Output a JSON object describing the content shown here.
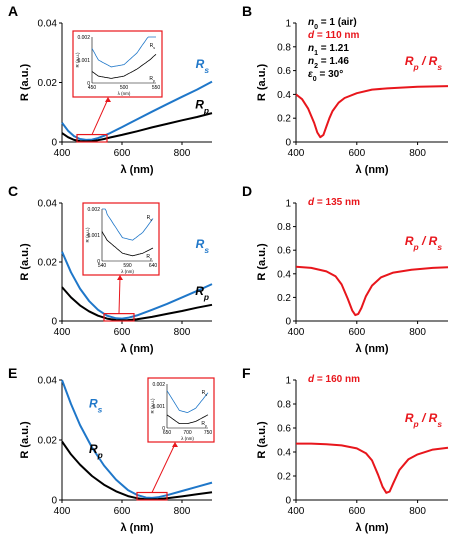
{
  "colors": {
    "rs": "#1f77c9",
    "rp": "#000000",
    "ratio": "#e8161c",
    "annotation": "#e8161c"
  },
  "chart_data": [
    {
      "panel": "A",
      "type": "line",
      "xlabel": "λ (nm)",
      "ylabel": "R (a.u.)",
      "xlim": [
        400,
        900
      ],
      "ylim": [
        0,
        0.04
      ],
      "xticks": [
        400,
        600,
        800
      ],
      "yticks": [
        0,
        0.02,
        0.04
      ],
      "xtick_labels": [
        "400",
        "600",
        "800"
      ],
      "ytick_labels": [
        "0",
        "0.02",
        "0.04"
      ],
      "series": [
        {
          "name": "R_s",
          "label_main": "R",
          "label_sub": "s",
          "color": "#1f77c9",
          "x": [
            400,
            420,
            440,
            460,
            480,
            500,
            520,
            540,
            560,
            600,
            650,
            700,
            750,
            800,
            850,
            900
          ],
          "y": [
            0.0065,
            0.0038,
            0.002,
            0.001,
            0.0007,
            0.0008,
            0.0013,
            0.0021,
            0.003,
            0.005,
            0.0076,
            0.0102,
            0.0127,
            0.0152,
            0.0176,
            0.0203
          ]
        },
        {
          "name": "R_p",
          "label_main": "R",
          "label_sub": "p",
          "color": "#000000",
          "x": [
            400,
            420,
            440,
            460,
            480,
            500,
            520,
            540,
            560,
            600,
            650,
            700,
            750,
            800,
            850,
            900
          ],
          "y": [
            0.003,
            0.0016,
            0.0007,
            0.0003,
            0.0002,
            0.0003,
            0.0006,
            0.001,
            0.0015,
            0.0024,
            0.0036,
            0.0049,
            0.0061,
            0.0073,
            0.0084,
            0.0097
          ]
        }
      ],
      "inset": {
        "xlim": [
          450,
          550
        ],
        "ylim": [
          0,
          0.002
        ],
        "xticks": [
          450,
          500,
          550
        ],
        "yticks": [
          0,
          0.001,
          0.002
        ],
        "xtick_labels": [
          "450",
          "500",
          "550"
        ],
        "ytick_labels": [
          "0",
          "0.001",
          "0.002"
        ],
        "xlabel": "λ (nm)",
        "ylabel": "R (a.u.)",
        "zoom_box": {
          "x": [
            450,
            550
          ],
          "y": [
            0,
            0.0025
          ]
        }
      }
    },
    {
      "panel": "B",
      "type": "line",
      "xlabel": "λ (nm)",
      "ylabel": "R (a.u.)",
      "xlim": [
        400,
        900
      ],
      "ylim": [
        0,
        1
      ],
      "xticks": [
        400,
        600,
        800
      ],
      "yticks": [
        0,
        0.2,
        0.4,
        0.6,
        0.8,
        1
      ],
      "xtick_labels": [
        "400",
        "600",
        "800"
      ],
      "ytick_labels": [
        "0",
        "0.2",
        "0.4",
        "0.6",
        "0.8",
        "1"
      ],
      "series": [
        {
          "name": "R_p / R_s",
          "color": "#e8161c",
          "x": [
            400,
            420,
            440,
            460,
            470,
            480,
            490,
            500,
            510,
            520,
            540,
            560,
            600,
            650,
            700,
            800,
            900
          ],
          "y": [
            0.4,
            0.36,
            0.28,
            0.16,
            0.08,
            0.04,
            0.06,
            0.13,
            0.2,
            0.26,
            0.33,
            0.37,
            0.41,
            0.44,
            0.45,
            0.465,
            0.47
          ]
        }
      ],
      "ratio_label": {
        "main1": "R",
        "sub1": "p",
        "sep": " / ",
        "main2": "R",
        "sub2": "s"
      },
      "params": [
        {
          "text": "n",
          "sub": "0",
          "rest": "= 1 (air)",
          "color": "#000000"
        },
        {
          "text": "d",
          "sub": "",
          "rest": "= 110 nm",
          "color": "#e8161c"
        },
        {
          "text": "n",
          "sub": "1",
          "rest": "= 1.21",
          "color": "#000000"
        },
        {
          "text": "n",
          "sub": "2",
          "rest": "= 1.46",
          "color": "#000000"
        },
        {
          "text": "ε",
          "sub": "0",
          "rest": "= 30°",
          "color": "#000000"
        }
      ]
    },
    {
      "panel": "C",
      "type": "line",
      "xlabel": "λ (nm)",
      "ylabel": "R (a.u.)",
      "xlim": [
        400,
        900
      ],
      "ylim": [
        0,
        0.04
      ],
      "xticks": [
        400,
        600,
        800
      ],
      "yticks": [
        0,
        0.02,
        0.04
      ],
      "xtick_labels": [
        "400",
        "600",
        "800"
      ],
      "ytick_labels": [
        "0",
        "0.02",
        "0.04"
      ],
      "series": [
        {
          "name": "R_s",
          "label_main": "R",
          "label_sub": "s",
          "color": "#1f77c9",
          "x": [
            400,
            430,
            460,
            490,
            520,
            550,
            580,
            600,
            620,
            650,
            700,
            750,
            800,
            850,
            900
          ],
          "y": [
            0.0235,
            0.0165,
            0.011,
            0.0068,
            0.0038,
            0.0018,
            0.0009,
            0.0008,
            0.0011,
            0.0019,
            0.0038,
            0.0058,
            0.008,
            0.0102,
            0.0125
          ]
        },
        {
          "name": "R_p",
          "label_main": "R",
          "label_sub": "p",
          "color": "#000000",
          "x": [
            400,
            430,
            460,
            490,
            520,
            550,
            580,
            600,
            620,
            650,
            700,
            750,
            800,
            850,
            900
          ],
          "y": [
            0.0115,
            0.008,
            0.0053,
            0.0033,
            0.0018,
            0.0008,
            0.0003,
            0.0002,
            0.0003,
            0.0006,
            0.0014,
            0.0024,
            0.0034,
            0.0045,
            0.0055
          ]
        }
      ],
      "inset": {
        "xlim": [
          540,
          640
        ],
        "ylim": [
          0,
          0.002
        ],
        "xticks": [
          540,
          590,
          640
        ],
        "yticks": [
          0,
          0.001,
          0.002
        ],
        "xtick_labels": [
          "540",
          "590",
          "640"
        ],
        "ytick_labels": [
          "0",
          "0.001",
          "0.002"
        ],
        "xlabel": "λ (nm)",
        "ylabel": "R (a.u.)",
        "zoom_box": {
          "x": [
            540,
            640
          ],
          "y": [
            0,
            0.0025
          ]
        }
      }
    },
    {
      "panel": "D",
      "type": "line",
      "xlabel": "λ (nm)",
      "ylabel": "R (a.u.)",
      "xlim": [
        400,
        900
      ],
      "ylim": [
        0,
        1
      ],
      "xticks": [
        400,
        600,
        800
      ],
      "yticks": [
        0,
        0.2,
        0.4,
        0.6,
        0.8,
        1
      ],
      "xtick_labels": [
        "400",
        "600",
        "800"
      ],
      "ytick_labels": [
        "0",
        "0.2",
        "0.4",
        "0.6",
        "0.8",
        "1"
      ],
      "series": [
        {
          "name": "R_p / R_s",
          "color": "#e8161c",
          "x": [
            400,
            450,
            500,
            530,
            550,
            570,
            585,
            595,
            605,
            615,
            630,
            650,
            680,
            720,
            780,
            850,
            900
          ],
          "y": [
            0.46,
            0.45,
            0.42,
            0.38,
            0.31,
            0.19,
            0.09,
            0.05,
            0.06,
            0.11,
            0.21,
            0.3,
            0.37,
            0.41,
            0.435,
            0.45,
            0.455
          ]
        }
      ],
      "ratio_label": {
        "main1": "R",
        "sub1": "p",
        "sep": " / ",
        "main2": "R",
        "sub2": "s"
      },
      "params": [
        {
          "text": "d",
          "sub": "",
          "rest": "= 135 nm",
          "color": "#e8161c"
        }
      ]
    },
    {
      "panel": "E",
      "type": "line",
      "xlabel": "λ (nm)",
      "ylabel": "R (a.u.)",
      "xlim": [
        400,
        900
      ],
      "ylim": [
        0,
        0.04
      ],
      "xticks": [
        400,
        600,
        800
      ],
      "yticks": [
        0,
        0.02,
        0.04
      ],
      "xtick_labels": [
        "400",
        "600",
        "800"
      ],
      "ytick_labels": [
        "0",
        "0.02",
        "0.04"
      ],
      "series": [
        {
          "name": "R_s",
          "label_main": "R",
          "label_sub": "s",
          "color": "#1f77c9",
          "x": [
            400,
            430,
            460,
            500,
            540,
            580,
            620,
            650,
            680,
            700,
            720,
            750,
            800,
            850,
            900
          ],
          "y": [
            0.04,
            0.032,
            0.025,
            0.0175,
            0.0115,
            0.0068,
            0.0033,
            0.0017,
            0.0008,
            0.0007,
            0.0009,
            0.0016,
            0.003,
            0.0044,
            0.0058
          ]
        },
        {
          "name": "R_p",
          "label_main": "R",
          "label_sub": "p",
          "color": "#000000",
          "x": [
            400,
            430,
            460,
            500,
            540,
            580,
            620,
            650,
            680,
            700,
            720,
            750,
            800,
            850,
            900
          ],
          "y": [
            0.0195,
            0.0152,
            0.0118,
            0.008,
            0.0051,
            0.0029,
            0.0013,
            0.0006,
            0.0002,
            0.0002,
            0.0003,
            0.0006,
            0.0012,
            0.0019,
            0.0026
          ]
        }
      ],
      "inset": {
        "xlim": [
          650,
          750
        ],
        "ylim": [
          0,
          0.002
        ],
        "xticks": [
          650,
          700,
          750
        ],
        "yticks": [
          0,
          0.001,
          0.002
        ],
        "xtick_labels": [
          "650",
          "700",
          "750"
        ],
        "ytick_labels": [
          "0",
          "0.001",
          "0.002"
        ],
        "xlabel": "λ (nm)",
        "ylabel": "R (a.u.)",
        "zoom_box": {
          "x": [
            650,
            750
          ],
          "y": [
            0,
            0.0025
          ]
        }
      }
    },
    {
      "panel": "F",
      "type": "line",
      "xlabel": "λ (nm)",
      "ylabel": "R (a.u.)",
      "xlim": [
        400,
        900
      ],
      "ylim": [
        0,
        1
      ],
      "xticks": [
        400,
        600,
        800
      ],
      "yticks": [
        0,
        0.2,
        0.4,
        0.6,
        0.8,
        1
      ],
      "xtick_labels": [
        "400",
        "600",
        "800"
      ],
      "ytick_labels": [
        "0",
        "0.2",
        "0.4",
        "0.6",
        "0.8",
        "1"
      ],
      "series": [
        {
          "name": "R_p / R_s",
          "color": "#e8161c",
          "x": [
            400,
            450,
            500,
            550,
            600,
            630,
            650,
            670,
            685,
            697,
            708,
            720,
            740,
            770,
            800,
            850,
            900
          ],
          "y": [
            0.47,
            0.47,
            0.465,
            0.455,
            0.43,
            0.39,
            0.33,
            0.21,
            0.11,
            0.06,
            0.07,
            0.14,
            0.25,
            0.34,
            0.38,
            0.42,
            0.435
          ]
        }
      ],
      "ratio_label": {
        "main1": "R",
        "sub1": "p",
        "sep": " / ",
        "main2": "R",
        "sub2": "s"
      },
      "params": [
        {
          "text": "d",
          "sub": "",
          "rest": "= 160 nm",
          "color": "#e8161c"
        }
      ]
    }
  ]
}
